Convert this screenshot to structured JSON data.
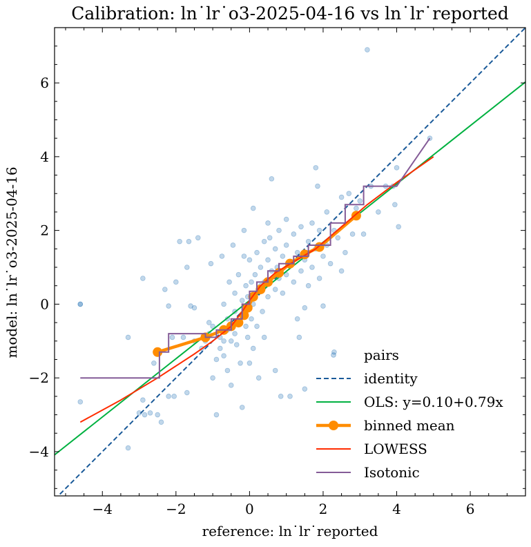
{
  "chart_data": {
    "type": "scatter",
    "title": "Calibration: ln˙lr˙o3-2025-04-16 vs ln˙lr˙reported",
    "xlabel": "reference: ln˙lr˙reported",
    "ylabel": "model: ln˙lr˙o3-2025-04-16",
    "xlim": [
      -5.3,
      7.5
    ],
    "ylim": [
      -5.2,
      7.5
    ],
    "xticks": [
      -4,
      -2,
      0,
      2,
      4,
      6
    ],
    "yticks": [
      -4,
      -2,
      0,
      2,
      4,
      6
    ],
    "xtick_labels": [
      "−4",
      "−2",
      "0",
      "2",
      "4",
      "6"
    ],
    "ytick_labels": [
      "−4",
      "−2",
      "0",
      "2",
      "4",
      "6"
    ],
    "grid": false,
    "legend_position": "bottom-right",
    "colors": {
      "pairs": "#1f6fb4",
      "identity": "#1a5a99",
      "ols": "#00b140",
      "binned": "#ff8c00",
      "lowess": "#ff2c00",
      "isotonic": "#845b97"
    },
    "series": [
      {
        "name": "pairs",
        "kind": "scatter",
        "points": [
          [
            -4.6,
            0.0
          ],
          [
            -4.6,
            0.0
          ],
          [
            -4.6,
            -2.65
          ],
          [
            -3.3,
            -0.9
          ],
          [
            -3.3,
            -3.9
          ],
          [
            -2.9,
            0.7
          ],
          [
            -3.0,
            -2.95
          ],
          [
            -2.9,
            -2.6
          ],
          [
            -2.85,
            -3.0
          ],
          [
            -2.7,
            -2.95
          ],
          [
            -2.6,
            -1.6
          ],
          [
            -2.5,
            -3.0
          ],
          [
            -2.4,
            -3.2
          ],
          [
            -2.3,
            0.4
          ],
          [
            -2.2,
            -0.05
          ],
          [
            -2.2,
            -2.5
          ],
          [
            -2.1,
            -0.9
          ],
          [
            -2.05,
            -2.5
          ],
          [
            -2.0,
            0.6
          ],
          [
            -1.9,
            1.7
          ],
          [
            -1.8,
            -0.9
          ],
          [
            -1.7,
            1.0
          ],
          [
            -1.7,
            -2.4
          ],
          [
            -1.65,
            1.7
          ],
          [
            -1.6,
            -0.05
          ],
          [
            -1.5,
            -0.1
          ],
          [
            -1.5,
            -1.0
          ],
          [
            -1.4,
            1.8
          ],
          [
            -1.3,
            -1.2
          ],
          [
            -1.2,
            -1.0
          ],
          [
            -1.1,
            -0.5
          ],
          [
            -1.1,
            -0.8
          ],
          [
            -1.05,
            1.1
          ],
          [
            -1.0,
            -2.0
          ],
          [
            -1.0,
            -0.6
          ],
          [
            -0.9,
            -3.0
          ],
          [
            -0.9,
            -1.5
          ],
          [
            -0.8,
            -0.9
          ],
          [
            -0.8,
            -1.2
          ],
          [
            -0.75,
            1.3
          ],
          [
            -0.7,
            0.0
          ],
          [
            -0.7,
            -1.0
          ],
          [
            -0.7,
            -1.4
          ],
          [
            -0.6,
            -0.4
          ],
          [
            -0.6,
            -0.7
          ],
          [
            -0.6,
            -1.8
          ],
          [
            -0.55,
            0.6
          ],
          [
            -0.5,
            -1.0
          ],
          [
            -0.5,
            -2.2
          ],
          [
            -0.45,
            1.6
          ],
          [
            -0.4,
            -0.2
          ],
          [
            -0.4,
            -0.8
          ],
          [
            -0.4,
            0.3
          ],
          [
            -0.35,
            -1.1
          ],
          [
            -0.3,
            -0.5
          ],
          [
            -0.3,
            0.8
          ],
          [
            -0.25,
            -1.6
          ],
          [
            -0.2,
            0.1
          ],
          [
            -0.2,
            -0.3
          ],
          [
            -0.2,
            -2.8
          ],
          [
            -0.15,
            2.0
          ],
          [
            -0.15,
            1.3
          ],
          [
            -0.1,
            -0.6
          ],
          [
            -0.1,
            0.5
          ],
          [
            -0.05,
            -0.9
          ],
          [
            -0.05,
            0.2
          ],
          [
            0.0,
            -0.1
          ],
          [
            0.0,
            1.2
          ],
          [
            0.0,
            -1.6
          ],
          [
            0.05,
            0.6
          ],
          [
            0.05,
            -0.4
          ],
          [
            0.1,
            0.0
          ],
          [
            0.1,
            2.6
          ],
          [
            0.1,
            -1.2
          ],
          [
            0.15,
            0.8
          ],
          [
            0.2,
            0.3
          ],
          [
            0.2,
            1.4
          ],
          [
            0.2,
            -0.6
          ],
          [
            0.25,
            -2.0
          ],
          [
            0.3,
            0.5
          ],
          [
            0.3,
            1.0
          ],
          [
            0.35,
            -0.2
          ],
          [
            0.4,
            1.7
          ],
          [
            0.4,
            0.6
          ],
          [
            0.4,
            -0.9
          ],
          [
            0.5,
            1.2
          ],
          [
            0.5,
            0.2
          ],
          [
            0.5,
            2.2
          ],
          [
            0.55,
            1.8
          ],
          [
            0.6,
            0.9
          ],
          [
            0.6,
            3.4
          ],
          [
            0.7,
            0.4
          ],
          [
            0.7,
            1.5
          ],
          [
            0.7,
            -1.8
          ],
          [
            0.75,
            1.0
          ],
          [
            0.8,
            0.7
          ],
          [
            0.8,
            2.0
          ],
          [
            0.85,
            -2.5
          ],
          [
            0.9,
            1.3
          ],
          [
            0.9,
            0.3
          ],
          [
            1.0,
            1.6
          ],
          [
            1.0,
            0.8
          ],
          [
            1.0,
            2.3
          ],
          [
            1.1,
            1.1
          ],
          [
            1.1,
            -2.5
          ],
          [
            1.2,
            1.9
          ],
          [
            1.2,
            0.6
          ],
          [
            1.3,
            1.4
          ],
          [
            1.3,
            -0.4
          ],
          [
            1.35,
            -0.9
          ],
          [
            1.4,
            2.1
          ],
          [
            1.4,
            0.9
          ],
          [
            1.5,
            1.2
          ],
          [
            1.5,
            -0.1
          ],
          [
            1.5,
            -2.3
          ],
          [
            1.6,
            1.7
          ],
          [
            1.6,
            0.5
          ],
          [
            1.7,
            2.2
          ],
          [
            1.7,
            1.0
          ],
          [
            1.8,
            1.5
          ],
          [
            1.8,
            3.7
          ],
          [
            1.85,
            3.2
          ],
          [
            1.9,
            0.7
          ],
          [
            1.9,
            2.0
          ],
          [
            2.0,
            1.3
          ],
          [
            2.0,
            -0.05
          ],
          [
            2.1,
            2.5
          ],
          [
            2.1,
            1.6
          ],
          [
            2.2,
            1.1
          ],
          [
            2.3,
            -1.3
          ],
          [
            2.3,
            2.0
          ],
          [
            2.4,
            1.8
          ],
          [
            2.5,
            0.9
          ],
          [
            2.5,
            2.9
          ],
          [
            2.6,
            1.4
          ],
          [
            2.7,
            3.0
          ],
          [
            2.8,
            1.9
          ],
          [
            2.9,
            2.6
          ],
          [
            3.0,
            2.8
          ],
          [
            3.1,
            1.9
          ],
          [
            3.2,
            6.9
          ],
          [
            3.3,
            3.2
          ],
          [
            3.5,
            2.5
          ],
          [
            3.7,
            3.2
          ],
          [
            3.9,
            3.2
          ],
          [
            3.95,
            2.7
          ],
          [
            4.0,
            3.7
          ],
          [
            4.05,
            2.1
          ],
          [
            4.9,
            4.5
          ]
        ]
      },
      {
        "name": "identity",
        "kind": "line",
        "style": "dashed",
        "points": [
          [
            -5.3,
            -5.3
          ],
          [
            7.5,
            7.5
          ]
        ]
      },
      {
        "name": "OLS: y=0.10+0.79x",
        "kind": "line",
        "points": [
          [
            -5.3,
            -4.087
          ],
          [
            7.5,
            6.025
          ]
        ]
      },
      {
        "name": "binned mean",
        "kind": "line-markers",
        "points": [
          [
            -2.5,
            -1.3
          ],
          [
            -1.2,
            -0.9
          ],
          [
            -0.7,
            -0.7
          ],
          [
            -0.5,
            -0.6
          ],
          [
            -0.3,
            -0.5
          ],
          [
            -0.15,
            -0.3
          ],
          [
            -0.05,
            -0.1
          ],
          [
            0.1,
            0.2
          ],
          [
            0.3,
            0.4
          ],
          [
            0.5,
            0.6
          ],
          [
            0.8,
            0.85
          ],
          [
            1.1,
            1.1
          ],
          [
            1.5,
            1.35
          ],
          [
            1.9,
            1.55
          ],
          [
            2.9,
            2.4
          ]
        ]
      },
      {
        "name": "LOWESS",
        "kind": "line",
        "points": [
          [
            -4.6,
            -3.2
          ],
          [
            -3.5,
            -2.6
          ],
          [
            -2.5,
            -2.0
          ],
          [
            -1.5,
            -1.35
          ],
          [
            -1.0,
            -1.0
          ],
          [
            -0.5,
            -0.6
          ],
          [
            -0.2,
            -0.2
          ],
          [
            0.0,
            0.1
          ],
          [
            0.3,
            0.5
          ],
          [
            0.7,
            0.85
          ],
          [
            1.2,
            1.15
          ],
          [
            1.8,
            1.5
          ],
          [
            2.5,
            2.1
          ],
          [
            3.2,
            2.7
          ],
          [
            4.0,
            3.3
          ],
          [
            5.0,
            4.0
          ]
        ]
      },
      {
        "name": "Isotonic",
        "kind": "step",
        "points": [
          [
            -4.6,
            -2.0
          ],
          [
            -2.45,
            -2.0
          ],
          [
            -2.45,
            -1.3
          ],
          [
            -2.2,
            -1.3
          ],
          [
            -2.2,
            -0.8
          ],
          [
            -1.2,
            -0.8
          ],
          [
            -1.2,
            -0.9
          ],
          [
            -0.9,
            -0.9
          ],
          [
            -0.9,
            -0.7
          ],
          [
            -0.5,
            -0.7
          ],
          [
            -0.5,
            -0.4
          ],
          [
            -0.2,
            -0.4
          ],
          [
            -0.2,
            0.0
          ],
          [
            0.0,
            0.0
          ],
          [
            0.0,
            0.35
          ],
          [
            0.2,
            0.35
          ],
          [
            0.2,
            0.6
          ],
          [
            0.5,
            0.6
          ],
          [
            0.5,
            0.9
          ],
          [
            0.8,
            0.9
          ],
          [
            0.8,
            1.1
          ],
          [
            1.2,
            1.1
          ],
          [
            1.2,
            1.3
          ],
          [
            1.6,
            1.3
          ],
          [
            1.6,
            1.6
          ],
          [
            2.2,
            1.6
          ],
          [
            2.2,
            2.2
          ],
          [
            2.6,
            2.2
          ],
          [
            2.6,
            2.7
          ],
          [
            3.1,
            2.7
          ],
          [
            3.1,
            3.2
          ],
          [
            4.0,
            3.2
          ],
          [
            4.9,
            4.5
          ]
        ]
      }
    ]
  }
}
